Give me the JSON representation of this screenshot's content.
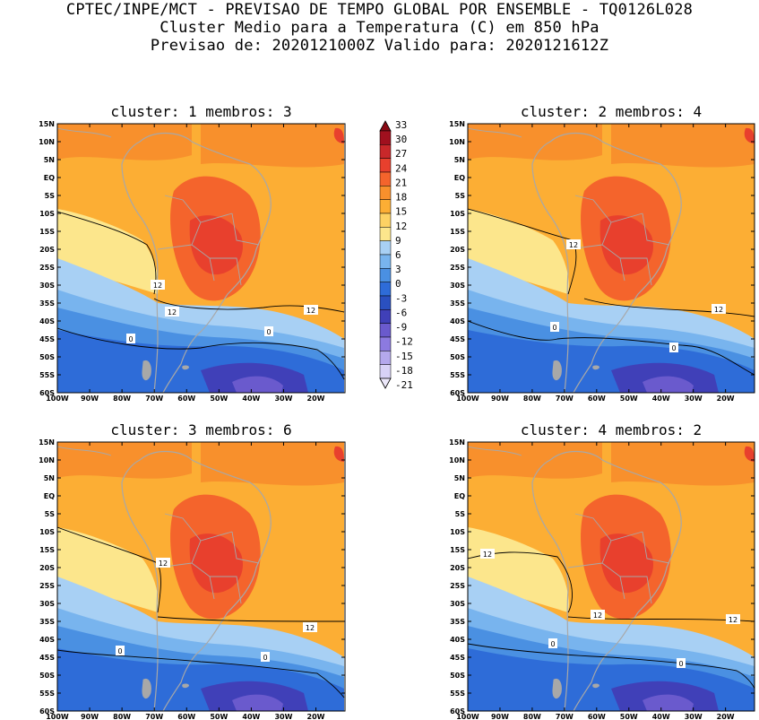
{
  "header": {
    "line1": "CPTEC/INPE/MCT - PREVISAO DE TEMPO GLOBAL POR ENSEMBLE - TQ0126L028",
    "line2": "Cluster Medio para a Temperatura (C) em 850 hPa",
    "line3": "Previsao de: 2020121000Z   Valido para: 2020121612Z"
  },
  "lat_ticks": [
    "15N",
    "10N",
    "5N",
    "EQ",
    "5S",
    "10S",
    "15S",
    "20S",
    "25S",
    "30S",
    "35S",
    "40S",
    "45S",
    "50S",
    "55S",
    "60S"
  ],
  "lon_ticks": [
    "100W",
    "90W",
    "80W",
    "70W",
    "60W",
    "50W",
    "40W",
    "30W",
    "20W"
  ],
  "colorbar": {
    "labels": [
      "33",
      "30",
      "27",
      "24",
      "21",
      "18",
      "15",
      "12",
      "9",
      "6",
      "3",
      "0",
      "-3",
      "-6",
      "-9",
      "-12",
      "-15",
      "-18",
      "-21"
    ],
    "colors": [
      "#a0101e",
      "#c8282a",
      "#e8402d",
      "#f4642c",
      "#f8902c",
      "#fcae34",
      "#fdd264",
      "#fce68c",
      "#a8d0f4",
      "#78b4ee",
      "#4a90e2",
      "#2e6cd8",
      "#2a50c0",
      "#4040b8",
      "#6a5acd",
      "#8c7ae0",
      "#b4a8ec",
      "#d8d2f6"
    ]
  },
  "panels": [
    {
      "title": "cluster: 1  membros: 3",
      "contour_labels": [
        {
          "text": "12"
        },
        {
          "text": "12"
        },
        {
          "text": "12"
        },
        {
          "text": "0"
        },
        {
          "text": "0"
        }
      ]
    },
    {
      "title": "cluster: 2  membros: 4",
      "contour_labels": [
        {
          "text": "12"
        },
        {
          "text": "12"
        },
        {
          "text": "0"
        },
        {
          "text": "0"
        }
      ]
    },
    {
      "title": "cluster: 3  membros: 6",
      "contour_labels": [
        {
          "text": "12"
        },
        {
          "text": "12"
        },
        {
          "text": "0"
        },
        {
          "text": "0"
        }
      ]
    },
    {
      "title": "cluster: 4  membros: 2",
      "contour_labels": [
        {
          "text": "12"
        },
        {
          "text": "12"
        },
        {
          "text": "12"
        },
        {
          "text": "0"
        },
        {
          "text": "0"
        }
      ]
    }
  ]
}
